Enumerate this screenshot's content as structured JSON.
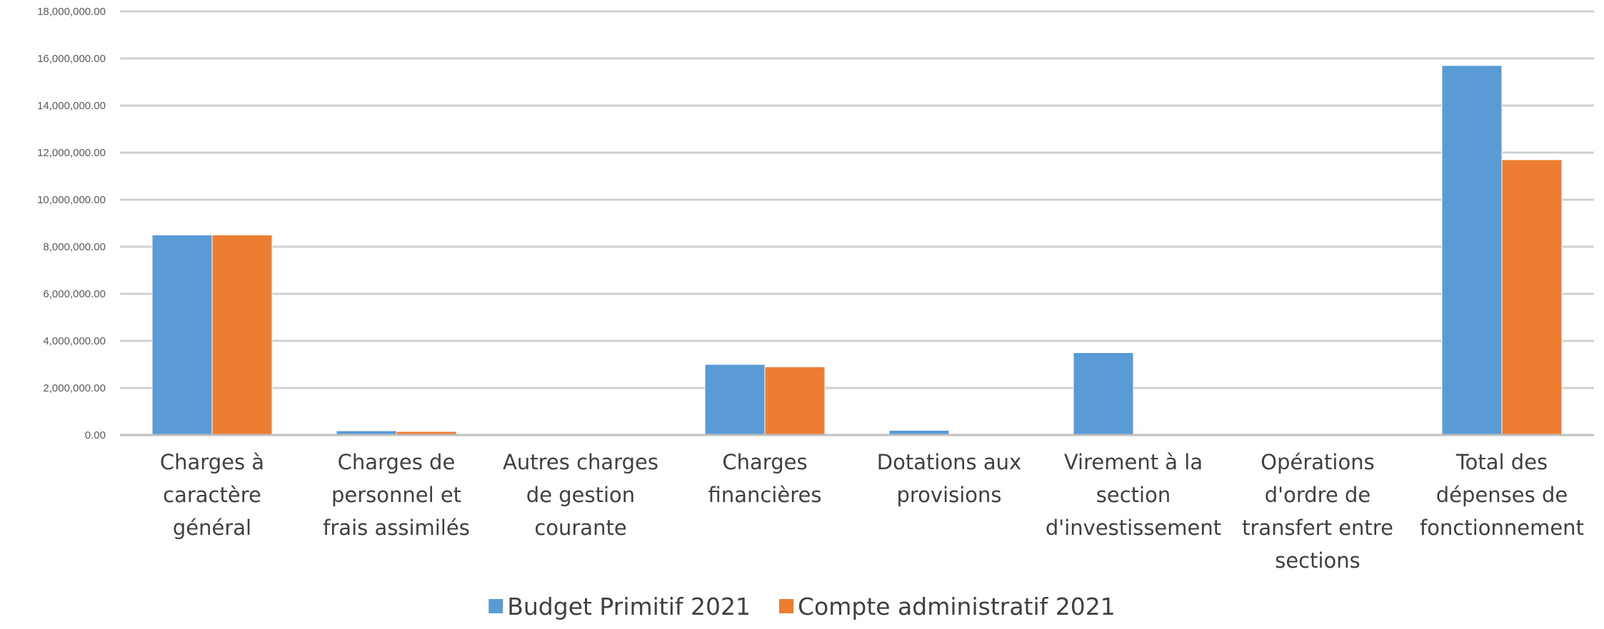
{
  "chart_data": {
    "type": "bar",
    "title": "",
    "xlabel": "",
    "ylabel": "",
    "ylim": [
      0,
      18000000
    ],
    "yticks": [
      0,
      2000000,
      4000000,
      6000000,
      8000000,
      10000000,
      12000000,
      14000000,
      16000000,
      18000000
    ],
    "ytick_labels": [
      "0.00",
      "2,000,000.00",
      "4,000,000.00",
      "6,000,000.00",
      "8,000,000.00",
      "10,000,000.00",
      "12,000,000.00",
      "14,000,000.00",
      "16,000,000.00",
      "18,000,000.00"
    ],
    "grid": true,
    "legend_position": "bottom",
    "categories": [
      [
        "Charges à",
        "caractère",
        "général"
      ],
      [
        "Charges de",
        "personnel et",
        "frais assimilés"
      ],
      [
        "Autres charges",
        "de gestion",
        "courante"
      ],
      [
        "Charges",
        "financières"
      ],
      [
        "Dotations aux",
        "provisions"
      ],
      [
        "Virement à la",
        "section",
        "d'investissement"
      ],
      [
        "Opérations",
        "d'ordre de",
        "transfert entre",
        "sections"
      ],
      [
        "Total des",
        "dépenses de",
        "fonctionnement"
      ]
    ],
    "series": [
      {
        "name": "Budget Primitif 2021",
        "color": "#5B9BD5",
        "values": [
          8500000,
          180000,
          60000,
          3000000,
          200000,
          3500000,
          60000,
          15700000
        ]
      },
      {
        "name": "Compte administratif 2021",
        "color": "#ED7D31",
        "values": [
          8500000,
          150000,
          50000,
          2900000,
          0,
          0,
          50000,
          11700000
        ]
      }
    ]
  }
}
